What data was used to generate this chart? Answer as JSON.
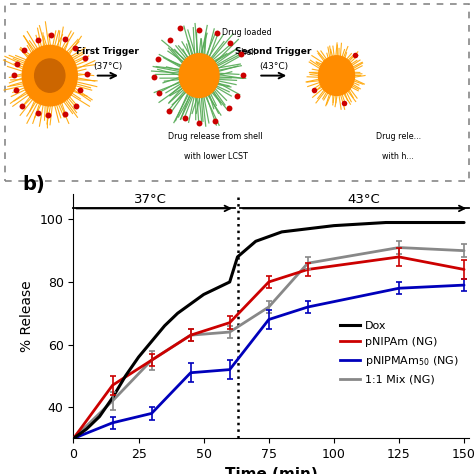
{
  "title_panel": "b)",
  "xlabel": "Time (min)",
  "ylabel": "% Release",
  "xlim": [
    0,
    152
  ],
  "ylim": [
    30,
    108
  ],
  "yticks": [
    40,
    60,
    80,
    100
  ],
  "xticks": [
    0,
    25,
    50,
    75,
    100,
    125,
    150
  ],
  "vline_x": 63,
  "temp_left": "37°C",
  "temp_right": "43°C",
  "series": {
    "Dox": {
      "color": "#000000",
      "linewidth": 2.2,
      "x": [
        0,
        5,
        10,
        15,
        20,
        25,
        30,
        35,
        40,
        45,
        50,
        55,
        60,
        63,
        70,
        80,
        90,
        100,
        110,
        120,
        130,
        140,
        150
      ],
      "y": [
        30,
        33,
        37,
        43,
        50,
        56,
        61,
        66,
        70,
        73,
        76,
        78,
        80,
        88,
        93,
        96,
        97,
        98,
        98.5,
        99,
        99,
        99,
        99
      ]
    },
    "pNIPAm": {
      "color": "#cc0000",
      "linewidth": 2.0,
      "x": [
        0,
        15,
        30,
        45,
        60,
        75,
        90,
        125,
        150
      ],
      "y": [
        30,
        47,
        55,
        63,
        67,
        80,
        84,
        88,
        84
      ],
      "yerr": [
        0,
        3,
        2,
        2,
        2,
        2,
        2,
        3,
        3
      ],
      "err_mask": [
        1,
        1,
        1,
        1,
        1,
        1,
        1,
        1,
        1
      ]
    },
    "pNIPMAm": {
      "color": "#0000bb",
      "linewidth": 2.0,
      "x": [
        0,
        15,
        30,
        45,
        60,
        75,
        90,
        125,
        150
      ],
      "y": [
        30,
        35,
        38,
        51,
        52,
        68,
        72,
        78,
        79
      ],
      "yerr": [
        0,
        2,
        2,
        3,
        3,
        3,
        2,
        2,
        2
      ],
      "err_mask": [
        0,
        1,
        1,
        1,
        1,
        1,
        1,
        1,
        1
      ]
    },
    "Mix": {
      "color": "#888888",
      "linewidth": 2.0,
      "x": [
        0,
        15,
        30,
        45,
        60,
        75,
        90,
        125,
        150
      ],
      "y": [
        30,
        42,
        55,
        63,
        64,
        72,
        86,
        91,
        90
      ],
      "yerr": [
        0,
        3,
        3,
        2,
        2,
        2,
        2,
        2,
        2
      ],
      "err_mask": [
        0,
        1,
        1,
        1,
        1,
        1,
        1,
        1,
        1
      ]
    }
  },
  "legend": [
    {
      "label": "Dox",
      "color": "#000000"
    },
    {
      "label": "pNIPAm (NG)",
      "color": "#cc0000"
    },
    {
      "label": "pNIPMAm$_{50}$ (NG)",
      "color": "#0000bb"
    },
    {
      "label": "1:1 Mix (NG)",
      "color": "#888888"
    }
  ],
  "background_color": "#ffffff"
}
